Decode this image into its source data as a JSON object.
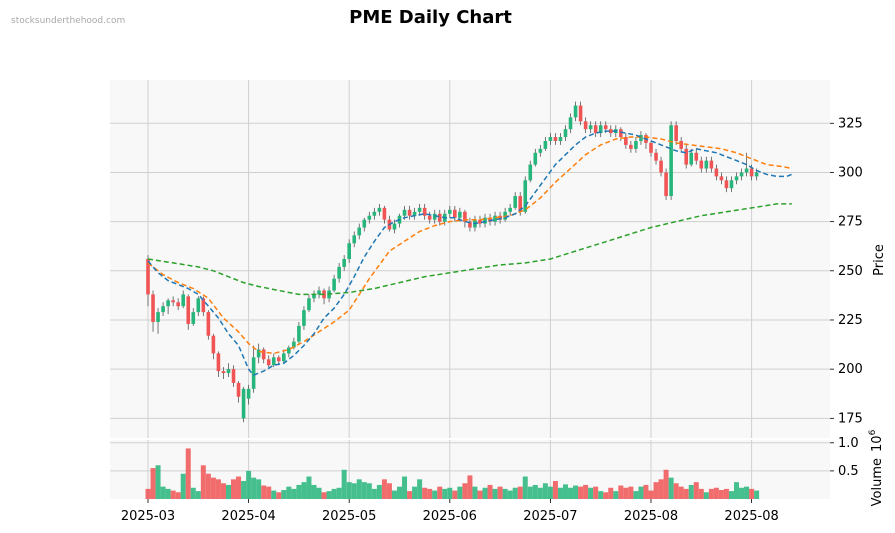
{
  "watermark": "stocksunderthehood.com",
  "title": "PME Daily Chart",
  "colors": {
    "up": "#26b57a",
    "down": "#f05454",
    "ma_short": "#1f77b4",
    "ma_mid": "#ff7f0e",
    "ma_long": "#2ca02c",
    "grid": "#d0d0d0",
    "panel_bg": "#f8f8f8"
  },
  "chart_data": {
    "type": "candlestick",
    "title": "PME Daily Chart",
    "price_axis": {
      "label": "Price",
      "range": [
        165,
        347
      ],
      "ticks": [
        175,
        200,
        225,
        250,
        275,
        300,
        325
      ]
    },
    "volume_axis": {
      "label": "Volume",
      "multiplier_label": "10",
      "multiplier_exp": "6",
      "range": [
        0,
        1.05
      ],
      "ticks": [
        0.5,
        1.0
      ],
      "tick_labels": [
        "0.5",
        "1.0"
      ]
    },
    "x_tick_labels": [
      {
        "label": "2025-03",
        "index": 0
      },
      {
        "label": "2025-04",
        "index": 20
      },
      {
        "label": "2025-05",
        "index": 40
      },
      {
        "label": "2025-06",
        "index": 60
      },
      {
        "label": "2025-07",
        "index": 80
      },
      {
        "label": "2025-08",
        "index": 100
      },
      {
        "label": "2025-08",
        "index": 120
      }
    ],
    "grid": true,
    "candles": [
      [
        256,
        238,
        258,
        232,
        0.18
      ],
      [
        238,
        224,
        240,
        219,
        0.55
      ],
      [
        224,
        229,
        231,
        218,
        0.6
      ],
      [
        229,
        232,
        234,
        227,
        0.22
      ],
      [
        232,
        235,
        236,
        228,
        0.18
      ],
      [
        235,
        234,
        237,
        232,
        0.15
      ],
      [
        234,
        232,
        236,
        230,
        0.12
      ],
      [
        232,
        238,
        240,
        231,
        0.45
      ],
      [
        237,
        223,
        238,
        220,
        0.9
      ],
      [
        223,
        229,
        231,
        222,
        0.2
      ],
      [
        229,
        236,
        237,
        227,
        0.14
      ],
      [
        236,
        229,
        237,
        227,
        0.6
      ],
      [
        229,
        217,
        230,
        215,
        0.45
      ],
      [
        217,
        208,
        218,
        205,
        0.38
      ],
      [
        208,
        199,
        209,
        196,
        0.35
      ],
      [
        199,
        198,
        201,
        195,
        0.28
      ],
      [
        198,
        200,
        203,
        196,
        0.25
      ],
      [
        200,
        193,
        202,
        191,
        0.35
      ],
      [
        193,
        186,
        194,
        183,
        0.4
      ],
      [
        175,
        190,
        191,
        173,
        0.32
      ],
      [
        185,
        190,
        192,
        182,
        0.5
      ],
      [
        190,
        206,
        212,
        188,
        0.38
      ],
      [
        206,
        210,
        213,
        203,
        0.35
      ],
      [
        210,
        205,
        211,
        203,
        0.24
      ],
      [
        205,
        202,
        207,
        201,
        0.22
      ],
      [
        202,
        206,
        208,
        201,
        0.15
      ],
      [
        206,
        204,
        207,
        202,
        0.12
      ],
      [
        204,
        208,
        210,
        203,
        0.16
      ],
      [
        208,
        211,
        212,
        206,
        0.22
      ],
      [
        211,
        214,
        216,
        210,
        0.18
      ],
      [
        214,
        222,
        224,
        213,
        0.25
      ],
      [
        222,
        230,
        232,
        220,
        0.3
      ],
      [
        230,
        236,
        238,
        229,
        0.4
      ],
      [
        236,
        238,
        240,
        234,
        0.25
      ],
      [
        238,
        240,
        242,
        236,
        0.2
      ],
      [
        240,
        236,
        241,
        233,
        0.12
      ],
      [
        236,
        240,
        242,
        234,
        0.14
      ],
      [
        240,
        246,
        248,
        239,
        0.18
      ],
      [
        246,
        252,
        254,
        244,
        0.2
      ],
      [
        252,
        256,
        258,
        250,
        0.52
      ],
      [
        256,
        264,
        266,
        254,
        0.3
      ],
      [
        264,
        268,
        270,
        262,
        0.28
      ],
      [
        268,
        272,
        274,
        266,
        0.35
      ],
      [
        272,
        276,
        277,
        270,
        0.3
      ],
      [
        276,
        278,
        280,
        274,
        0.28
      ],
      [
        278,
        280,
        282,
        276,
        0.18
      ],
      [
        280,
        282,
        284,
        278,
        0.25
      ],
      [
        282,
        276,
        283,
        274,
        0.35
      ],
      [
        276,
        271,
        278,
        270,
        0.28
      ],
      [
        271,
        274,
        276,
        269,
        0.15
      ],
      [
        274,
        278,
        279,
        272,
        0.22
      ],
      [
        278,
        281,
        283,
        276,
        0.4
      ],
      [
        281,
        278,
        283,
        276,
        0.14
      ],
      [
        278,
        280,
        282,
        276,
        0.22
      ],
      [
        280,
        282,
        284,
        278,
        0.35
      ],
      [
        282,
        278,
        284,
        276,
        0.2
      ],
      [
        278,
        276,
        280,
        274,
        0.18
      ],
      [
        276,
        279,
        281,
        274,
        0.15
      ],
      [
        279,
        275,
        281,
        273,
        0.22
      ],
      [
        275,
        279,
        281,
        273,
        0.18
      ],
      [
        279,
        281,
        283,
        277,
        0.2
      ],
      [
        281,
        277,
        283,
        275,
        0.15
      ],
      [
        277,
        280,
        282,
        275,
        0.22
      ],
      [
        280,
        275,
        281,
        272,
        0.28
      ],
      [
        275,
        272,
        277,
        270,
        0.42
      ],
      [
        272,
        276,
        278,
        270,
        0.22
      ],
      [
        276,
        274,
        278,
        272,
        0.15
      ],
      [
        274,
        277,
        279,
        272,
        0.2
      ],
      [
        277,
        275,
        279,
        273,
        0.25
      ],
      [
        275,
        278,
        280,
        273,
        0.18
      ],
      [
        278,
        276,
        280,
        274,
        0.22
      ],
      [
        276,
        280,
        282,
        275,
        0.18
      ],
      [
        280,
        282,
        284,
        278,
        0.15
      ],
      [
        282,
        288,
        290,
        281,
        0.2
      ],
      [
        288,
        280,
        290,
        278,
        0.22
      ],
      [
        280,
        296,
        298,
        279,
        0.4
      ],
      [
        296,
        304,
        306,
        295,
        0.22
      ],
      [
        304,
        310,
        312,
        303,
        0.25
      ],
      [
        310,
        312,
        314,
        308,
        0.2
      ],
      [
        312,
        316,
        318,
        311,
        0.28
      ],
      [
        316,
        318,
        320,
        314,
        0.22
      ],
      [
        318,
        316,
        320,
        314,
        0.32
      ],
      [
        316,
        318,
        320,
        314,
        0.2
      ],
      [
        318,
        322,
        324,
        316,
        0.26
      ],
      [
        322,
        328,
        330,
        320,
        0.2
      ],
      [
        328,
        334,
        336,
        326,
        0.24
      ],
      [
        334,
        326,
        336,
        324,
        0.22
      ],
      [
        326,
        322,
        328,
        320,
        0.25
      ],
      [
        322,
        324,
        326,
        320,
        0.2
      ],
      [
        324,
        320,
        326,
        318,
        0.22
      ],
      [
        320,
        324,
        326,
        318,
        0.14
      ],
      [
        324,
        322,
        326,
        320,
        0.12
      ],
      [
        322,
        320,
        324,
        318,
        0.2
      ],
      [
        320,
        322,
        324,
        318,
        0.14
      ],
      [
        322,
        318,
        323,
        316,
        0.24
      ],
      [
        318,
        314,
        320,
        312,
        0.2
      ],
      [
        314,
        312,
        316,
        310,
        0.22
      ],
      [
        312,
        316,
        318,
        310,
        0.14
      ],
      [
        316,
        319,
        321,
        314,
        0.22
      ],
      [
        319,
        315,
        320,
        312,
        0.25
      ],
      [
        315,
        310,
        316,
        308,
        0.15
      ],
      [
        310,
        306,
        312,
        304,
        0.3
      ],
      [
        306,
        300,
        308,
        298,
        0.35
      ],
      [
        300,
        288,
        302,
        286,
        0.52
      ],
      [
        288,
        324,
        326,
        286,
        0.38
      ],
      [
        324,
        316,
        326,
        314,
        0.28
      ],
      [
        316,
        312,
        318,
        310,
        0.22
      ],
      [
        312,
        304,
        314,
        302,
        0.18
      ],
      [
        304,
        310,
        312,
        303,
        0.25
      ],
      [
        310,
        306,
        312,
        304,
        0.3
      ],
      [
        306,
        302,
        308,
        300,
        0.18
      ],
      [
        302,
        306,
        308,
        300,
        0.12
      ],
      [
        306,
        302,
        308,
        300,
        0.18
      ],
      [
        302,
        298,
        304,
        296,
        0.2
      ],
      [
        298,
        296,
        300,
        294,
        0.16
      ],
      [
        296,
        292,
        298,
        290,
        0.18
      ],
      [
        292,
        296,
        298,
        290,
        0.14
      ],
      [
        296,
        298,
        300,
        294,
        0.3
      ],
      [
        298,
        300,
        302,
        296,
        0.2
      ],
      [
        300,
        302,
        310,
        298,
        0.22
      ],
      [
        302,
        298,
        304,
        296,
        0.18
      ],
      [
        298,
        300,
        302,
        296,
        0.15
      ]
    ],
    "ma_short": [
      [
        0,
        255
      ],
      [
        2,
        249
      ],
      [
        4,
        245
      ],
      [
        6,
        243
      ],
      [
        8,
        241
      ],
      [
        10,
        238
      ],
      [
        12,
        232
      ],
      [
        14,
        226
      ],
      [
        16,
        218
      ],
      [
        18,
        212
      ],
      [
        20,
        200
      ],
      [
        21,
        197
      ],
      [
        23,
        199
      ],
      [
        25,
        202
      ],
      [
        27,
        203
      ],
      [
        29,
        207
      ],
      [
        31,
        212
      ],
      [
        33,
        218
      ],
      [
        35,
        226
      ],
      [
        37,
        231
      ],
      [
        39,
        238
      ],
      [
        41,
        247
      ],
      [
        43,
        257
      ],
      [
        45,
        265
      ],
      [
        47,
        272
      ],
      [
        49,
        275
      ],
      [
        51,
        277
      ],
      [
        53,
        278
      ],
      [
        55,
        279
      ],
      [
        57,
        278
      ],
      [
        59,
        277
      ],
      [
        61,
        277
      ],
      [
        63,
        275
      ],
      [
        65,
        274
      ],
      [
        67,
        275
      ],
      [
        69,
        276
      ],
      [
        71,
        277
      ],
      [
        73,
        279
      ],
      [
        75,
        283
      ],
      [
        77,
        290
      ],
      [
        79,
        297
      ],
      [
        81,
        304
      ],
      [
        83,
        309
      ],
      [
        85,
        314
      ],
      [
        87,
        318
      ],
      [
        89,
        320
      ],
      [
        91,
        321
      ],
      [
        93,
        321
      ],
      [
        95,
        320
      ],
      [
        97,
        319
      ],
      [
        99,
        317
      ],
      [
        101,
        315
      ],
      [
        103,
        313
      ],
      [
        105,
        311
      ],
      [
        107,
        310
      ],
      [
        109,
        312
      ],
      [
        111,
        311
      ],
      [
        113,
        310
      ],
      [
        115,
        308
      ],
      [
        117,
        306
      ],
      [
        119,
        304
      ],
      [
        121,
        301
      ],
      [
        123,
        299
      ],
      [
        125,
        298
      ],
      [
        127,
        298
      ],
      [
        128,
        299
      ]
    ],
    "ma_mid": [
      [
        0,
        254
      ],
      [
        3,
        248
      ],
      [
        6,
        244
      ],
      [
        9,
        241
      ],
      [
        12,
        236
      ],
      [
        15,
        226
      ],
      [
        18,
        219
      ],
      [
        20,
        213
      ],
      [
        22,
        209
      ],
      [
        25,
        208
      ],
      [
        28,
        210
      ],
      [
        31,
        214
      ],
      [
        34,
        219
      ],
      [
        37,
        224
      ],
      [
        40,
        230
      ],
      [
        42,
        238
      ],
      [
        44,
        246
      ],
      [
        46,
        253
      ],
      [
        48,
        260
      ],
      [
        51,
        265
      ],
      [
        54,
        270
      ],
      [
        57,
        273
      ],
      [
        60,
        275
      ],
      [
        63,
        276
      ],
      [
        66,
        276
      ],
      [
        69,
        277
      ],
      [
        72,
        278
      ],
      [
        75,
        281
      ],
      [
        78,
        287
      ],
      [
        81,
        295
      ],
      [
        84,
        302
      ],
      [
        87,
        309
      ],
      [
        90,
        314
      ],
      [
        93,
        317
      ],
      [
        96,
        318
      ],
      [
        99,
        318
      ],
      [
        102,
        317
      ],
      [
        105,
        315
      ],
      [
        108,
        314
      ],
      [
        111,
        313
      ],
      [
        114,
        312
      ],
      [
        117,
        310
      ],
      [
        120,
        307
      ],
      [
        123,
        304
      ],
      [
        126,
        303
      ],
      [
        128,
        302
      ]
    ],
    "ma_long": [
      [
        0,
        256
      ],
      [
        5,
        254
      ],
      [
        10,
        252
      ],
      [
        13,
        250
      ],
      [
        16,
        247
      ],
      [
        19,
        244
      ],
      [
        22,
        242
      ],
      [
        26,
        240
      ],
      [
        30,
        238
      ],
      [
        35,
        238
      ],
      [
        40,
        239
      ],
      [
        45,
        241
      ],
      [
        50,
        244
      ],
      [
        55,
        247
      ],
      [
        60,
        249
      ],
      [
        65,
        251
      ],
      [
        70,
        253
      ],
      [
        75,
        254
      ],
      [
        80,
        256
      ],
      [
        85,
        260
      ],
      [
        90,
        264
      ],
      [
        95,
        268
      ],
      [
        100,
        272
      ],
      [
        105,
        275
      ],
      [
        110,
        278
      ],
      [
        115,
        280
      ],
      [
        120,
        282
      ],
      [
        125,
        284
      ],
      [
        128,
        284
      ]
    ]
  }
}
